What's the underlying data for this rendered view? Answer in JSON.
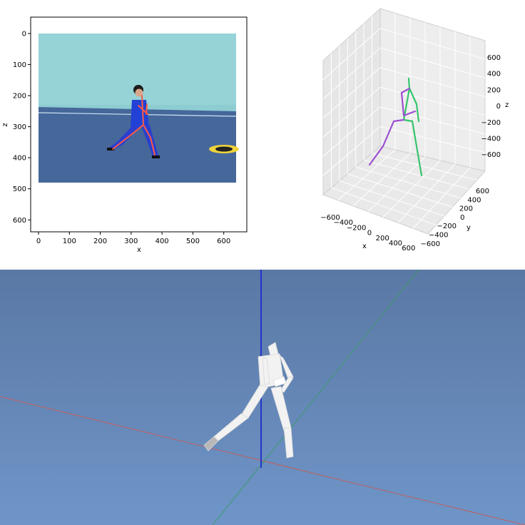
{
  "plot2d": {
    "xlabel": "x",
    "ylabel": "z",
    "xticks": [
      "0",
      "100",
      "200",
      "300",
      "400",
      "500",
      "600"
    ],
    "yticks": [
      "0",
      "100",
      "200",
      "300",
      "400",
      "500",
      "600"
    ],
    "xlim": [
      0,
      640
    ],
    "ylim": [
      0,
      640
    ],
    "image_extent": {
      "x": [
        0,
        640
      ],
      "y": [
        0,
        480
      ]
    },
    "skeleton_color": "#ff5a46",
    "photo_colors": {
      "wall": "#8fd0d4",
      "floor": "#46679a",
      "athlete": "#1f3fd0"
    }
  },
  "plot3d": {
    "xlabel": "x",
    "ylabel": "y",
    "zlabel": "z",
    "xticks": [
      "−600",
      "−400",
      "−200",
      "0",
      "200",
      "400",
      "600"
    ],
    "yticks": [
      "600",
      "400",
      "200",
      "0",
      "−200",
      "−400",
      "−600"
    ],
    "zticks": [
      "600",
      "400",
      "200",
      "0",
      "−200",
      "−400",
      "−600"
    ],
    "left_color": "#9d4fd0",
    "right_color": "#35c46c",
    "grid": true
  },
  "viewport3d": {
    "background_top": "#5a78a4",
    "background_bottom": "#6f95c8",
    "axis_x_color": "#c06060",
    "axis_y_color": "#3d9a6d",
    "axis_z_color": "#2233cc",
    "figure_color": "#f2f2f2"
  }
}
